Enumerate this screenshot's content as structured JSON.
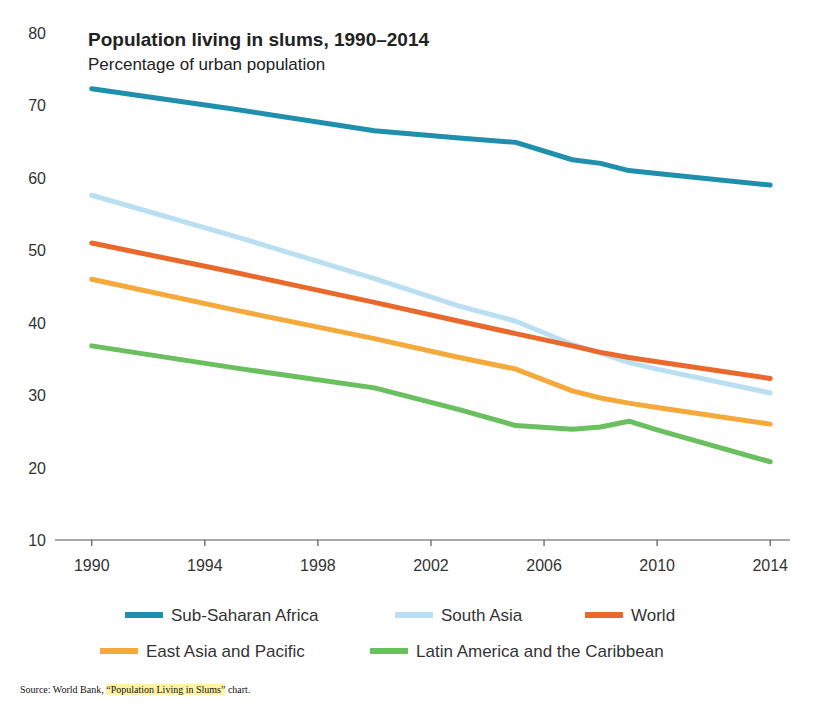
{
  "chart_data": {
    "type": "line",
    "title": "Population living in slums, 1990–2014",
    "subtitle": "Percentage of urban population",
    "source": "Source: World Bank, “Population Living in Slums” chart.",
    "x": [
      1990,
      1995,
      2000,
      2003,
      2005,
      2007,
      2008,
      2009,
      2010,
      2014
    ],
    "series": [
      {
        "name": "Sub-Saharan Africa",
        "color": "#1f8fad",
        "values": [
          72.3,
          69.5,
          66.5,
          65.5,
          64.9,
          62.5,
          62.0,
          61.0,
          60.6,
          59.0
        ]
      },
      {
        "name": "South Asia",
        "color": "#b9dff0",
        "values": [
          57.6,
          52.0,
          46.1,
          42.3,
          40.2,
          37.0,
          35.8,
          34.5,
          33.6,
          30.3
        ]
      },
      {
        "name": "World",
        "color": "#e8692b",
        "values": [
          51.0,
          47.0,
          42.8,
          40.2,
          38.5,
          36.8,
          35.9,
          35.2,
          34.6,
          32.3
        ]
      },
      {
        "name": "East Asia and Pacific",
        "color": "#f6a93b",
        "values": [
          46.0,
          41.8,
          37.8,
          35.2,
          33.6,
          30.6,
          29.6,
          28.9,
          28.3,
          26.0
        ]
      },
      {
        "name": "Latin America and the Caribbean",
        "color": "#6abf5e",
        "values": [
          36.8,
          33.8,
          31.0,
          28.0,
          25.8,
          25.3,
          25.6,
          26.4,
          25.2,
          20.8
        ]
      }
    ],
    "xlim": [
      1988.7,
      2014.7
    ],
    "xticks": [
      1990,
      1994,
      1998,
      2002,
      2006,
      2010,
      2014
    ],
    "ylim": [
      10,
      80
    ],
    "yticks": [
      10,
      20,
      30,
      40,
      50,
      60,
      70,
      80
    ],
    "grid": false,
    "legend": "bottom"
  }
}
